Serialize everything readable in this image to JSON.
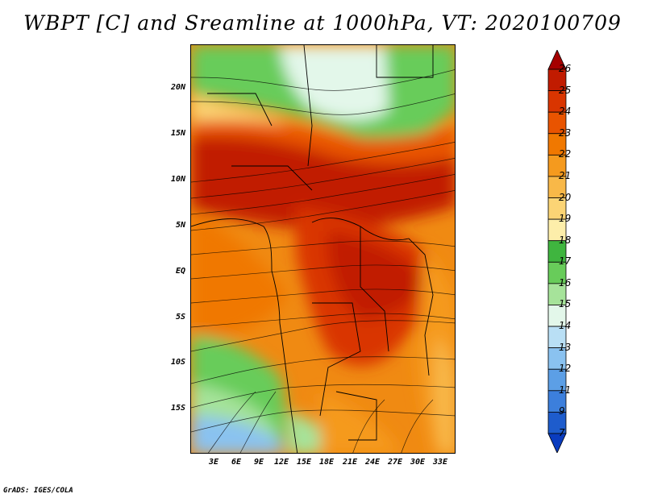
{
  "title": "WBPT [C] and Sreamline at 1000hPa, VT: 2020100709",
  "credit": "GrADS: IGES/COLA",
  "map": {
    "lat_range": [
      -20,
      24
    ],
    "lon_range": [
      0,
      35
    ],
    "y_ticks": [
      {
        "label": "20N",
        "lat": 20
      },
      {
        "label": "15N",
        "lat": 15
      },
      {
        "label": "10N",
        "lat": 10
      },
      {
        "label": "5N",
        "lat": 5
      },
      {
        "label": "EQ",
        "lat": 0
      },
      {
        "label": "5S",
        "lat": -5
      },
      {
        "label": "10S",
        "lat": -10
      },
      {
        "label": "15S",
        "lat": -15
      }
    ],
    "x_ticks": [
      {
        "label": "3E",
        "lon": 3
      },
      {
        "label": "6E",
        "lon": 6
      },
      {
        "label": "9E",
        "lon": 9
      },
      {
        "label": "12E",
        "lon": 12
      },
      {
        "label": "15E",
        "lon": 15
      },
      {
        "label": "18E",
        "lon": 18
      },
      {
        "label": "21E",
        "lon": 21
      },
      {
        "label": "24E",
        "lon": 24
      },
      {
        "label": "27E",
        "lon": 27
      },
      {
        "label": "30E",
        "lon": 30
      },
      {
        "label": "33E",
        "lon": 33
      }
    ]
  },
  "colorbar": {
    "levels": [
      "26",
      "25",
      "24",
      "23",
      "22",
      "21",
      "20",
      "19",
      "18",
      "17",
      "16",
      "15",
      "14",
      "13",
      "12",
      "11",
      "9",
      "7"
    ],
    "colors": [
      "#a50000",
      "#c11b00",
      "#d93500",
      "#e95400",
      "#f07800",
      "#f59a1e",
      "#f8b848",
      "#fbd475",
      "#fdeeaa",
      "#3fb53f",
      "#68cc5a",
      "#a6e39a",
      "#e3f7ea",
      "#b9dff5",
      "#8ac2f0",
      "#5c9fe6",
      "#3c7fdc",
      "#1e5ccc",
      "#0a3cbf"
    ]
  }
}
